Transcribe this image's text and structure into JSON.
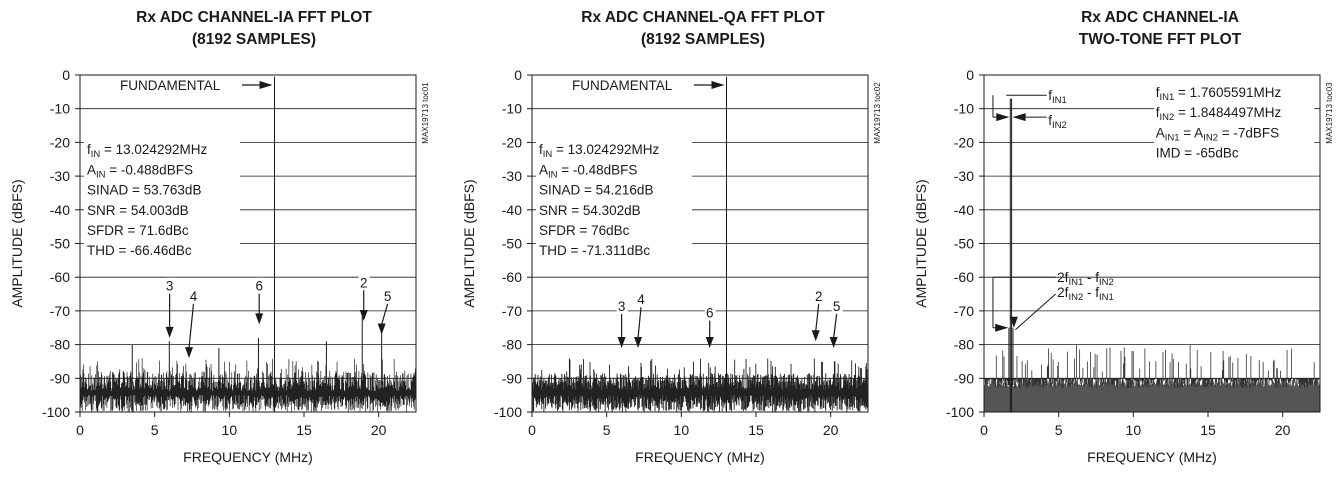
{
  "chart_data": [
    {
      "type": "line",
      "title": [
        "Rx ADC CHANNEL-IA FFT PLOT",
        "(8192 SAMPLES)"
      ],
      "xlabel": "FREQUENCY (MHz)",
      "ylabel": "AMPLITUDE (dBFS)",
      "xlim": [
        0,
        22.5
      ],
      "ylim": [
        -100,
        0
      ],
      "xticks": [
        0,
        5,
        10,
        15,
        20
      ],
      "yticks": [
        0,
        -10,
        -20,
        -30,
        -40,
        -50,
        -60,
        -70,
        -80,
        -90,
        -100
      ],
      "grid": true,
      "side_code": "MAX19713 toc01",
      "noise_floor": {
        "mean": -92,
        "spread": 6,
        "max_spur": -84,
        "mode": "spiky",
        "x": [
          0,
          22.5
        ]
      },
      "series": [
        {
          "x": [
            13.024292,
            13.024292
          ],
          "y": [
            -100,
            -0.488
          ]
        }
      ],
      "spurs": [
        {
          "x": 3.5,
          "y": -80
        },
        {
          "x": 5.98,
          "y": -79
        },
        {
          "x": 9.3,
          "y": -81
        },
        {
          "x": 11.95,
          "y": -78
        },
        {
          "x": 16.5,
          "y": -79
        },
        {
          "x": 18.9,
          "y": -71.6
        },
        {
          "x": 20.2,
          "y": -76
        }
      ],
      "annotations": {
        "fundamental": "FUNDAMENTAL",
        "info": [
          {
            "main": "f",
            "sub": "IN",
            "rest": " = 13.024292MHz",
            "y": -22
          },
          {
            "main": "A",
            "sub": "IN",
            "rest": " = -0.488dBFS",
            "y": -28
          },
          {
            "main": "SINAD = 53.763dB",
            "sub": "",
            "rest": "",
            "y": -34
          },
          {
            "main": "SNR = 54.003dB",
            "sub": "",
            "rest": "",
            "y": -40
          },
          {
            "main": "SFDR = 71.6dBc",
            "sub": "",
            "rest": "",
            "y": -46
          },
          {
            "main": "THD = -66.46dBc",
            "sub": "",
            "rest": "",
            "y": -52
          }
        ],
        "harmonics": [
          {
            "label": "3",
            "lx": 6.0,
            "ly": -64,
            "ax": 6.0,
            "ay": -78
          },
          {
            "label": "4",
            "lx": 7.6,
            "ly": -67,
            "ax": 7.3,
            "ay": -84
          },
          {
            "label": "6",
            "lx": 12.0,
            "ly": -64,
            "ax": 12.0,
            "ay": -74
          },
          {
            "label": "2",
            "lx": 19.0,
            "ly": -63,
            "ax": 19.0,
            "ay": -73
          },
          {
            "label": "5",
            "lx": 20.6,
            "ly": -67,
            "ax": 20.2,
            "ay": -77
          }
        ]
      }
    },
    {
      "type": "line",
      "title": [
        "Rx ADC CHANNEL-QA FFT PLOT",
        "(8192 SAMPLES)"
      ],
      "xlabel": "FREQUENCY (MHz)",
      "ylabel": "AMPLITUDE (dBFS)",
      "xlim": [
        0,
        22.5
      ],
      "ylim": [
        -100,
        0
      ],
      "xticks": [
        0,
        5,
        10,
        15,
        20
      ],
      "yticks": [
        0,
        -10,
        -20,
        -30,
        -40,
        -50,
        -60,
        -70,
        -80,
        -90,
        -100
      ],
      "grid": true,
      "side_code": "MAX19713 toc02",
      "noise_floor": {
        "mean": -92,
        "spread": 5,
        "max_spur": -84,
        "mode": "dense",
        "x": [
          0,
          22.5
        ]
      },
      "series": [
        {
          "x": [
            13.024292,
            13.024292
          ],
          "y": [
            -100,
            -0.48
          ]
        }
      ],
      "spurs": [],
      "annotations": {
        "fundamental": "FUNDAMENTAL",
        "info": [
          {
            "main": "f",
            "sub": "IN",
            "rest": " = 13.024292MHz",
            "y": -22
          },
          {
            "main": "A",
            "sub": "IN",
            "rest": " = -0.48dBFS",
            "y": -28
          },
          {
            "main": "SINAD = 54.216dB",
            "sub": "",
            "rest": "",
            "y": -34
          },
          {
            "main": "SNR = 54.302dB",
            "sub": "",
            "rest": "",
            "y": -40
          },
          {
            "main": "SFDR = 76dBc",
            "sub": "",
            "rest": "",
            "y": -46
          },
          {
            "main": "THD = -71.311dBc",
            "sub": "",
            "rest": "",
            "y": -52
          }
        ],
        "harmonics": [
          {
            "label": "3",
            "lx": 6.0,
            "ly": -70,
            "ax": 6.0,
            "ay": -81
          },
          {
            "label": "4",
            "lx": 7.3,
            "ly": -68,
            "ax": 7.1,
            "ay": -81
          },
          {
            "label": "6",
            "lx": 11.9,
            "ly": -72,
            "ax": 11.9,
            "ay": -81
          },
          {
            "label": "2",
            "lx": 19.2,
            "ly": -67,
            "ax": 19.0,
            "ay": -79
          },
          {
            "label": "5",
            "lx": 20.4,
            "ly": -70,
            "ax": 20.2,
            "ay": -81
          }
        ]
      }
    },
    {
      "type": "line",
      "title": [
        "Rx ADC CHANNEL-IA",
        "TWO-TONE FFT PLOT"
      ],
      "xlabel": "FREQUENCY (MHz)",
      "ylabel": "AMPLITUDE (dBFS)",
      "xlim": [
        0,
        22.5
      ],
      "ylim": [
        -100,
        0
      ],
      "xticks": [
        0,
        5,
        10,
        15,
        20
      ],
      "yticks": [
        0,
        -10,
        -20,
        -30,
        -40,
        -50,
        -60,
        -70,
        -80,
        -90,
        -100
      ],
      "grid": true,
      "side_code": "MAX19713 toc03",
      "noise_floor": {
        "mean": -95,
        "spread": 4,
        "max_spur": -80,
        "mode": "filled",
        "x": [
          0,
          22.5
        ]
      },
      "series": [
        {
          "x": [
            1.7605591,
            1.7605591
          ],
          "y": [
            -100,
            -7
          ]
        },
        {
          "x": [
            1.8484497,
            1.8484497
          ],
          "y": [
            -100,
            -7
          ]
        }
      ],
      "spurs": [
        {
          "x": 1.67,
          "y": -75
        },
        {
          "x": 1.94,
          "y": -75
        }
      ],
      "annotations": {
        "info": [
          {
            "main": "f",
            "sub": "IN1",
            "rest": " = 1.7605591MHz",
            "y": -5
          },
          {
            "main": "f",
            "sub": "IN2",
            "rest": " = 1.8484497MHz",
            "y": -11
          },
          {
            "main": "A",
            "sub": "IN1",
            "rest": " = A",
            "sub2": "IN2",
            "rest2": " = -7dBFS",
            "y": -17
          },
          {
            "main": "IMD = -65dBc",
            "sub": "",
            "rest": "",
            "y": -23
          }
        ],
        "tones": [
          {
            "main": "f",
            "sub": "IN1",
            "prefix": ""
          },
          {
            "main": "f",
            "sub": "IN2",
            "prefix": ""
          }
        ],
        "imd_labels": [
          {
            "pre": "2f",
            "s1": "IN1",
            "mid": " - f",
            "s2": "IN2"
          },
          {
            "pre": "2f",
            "s1": "IN2",
            "mid": " - f",
            "s2": "IN1"
          }
        ]
      }
    }
  ]
}
